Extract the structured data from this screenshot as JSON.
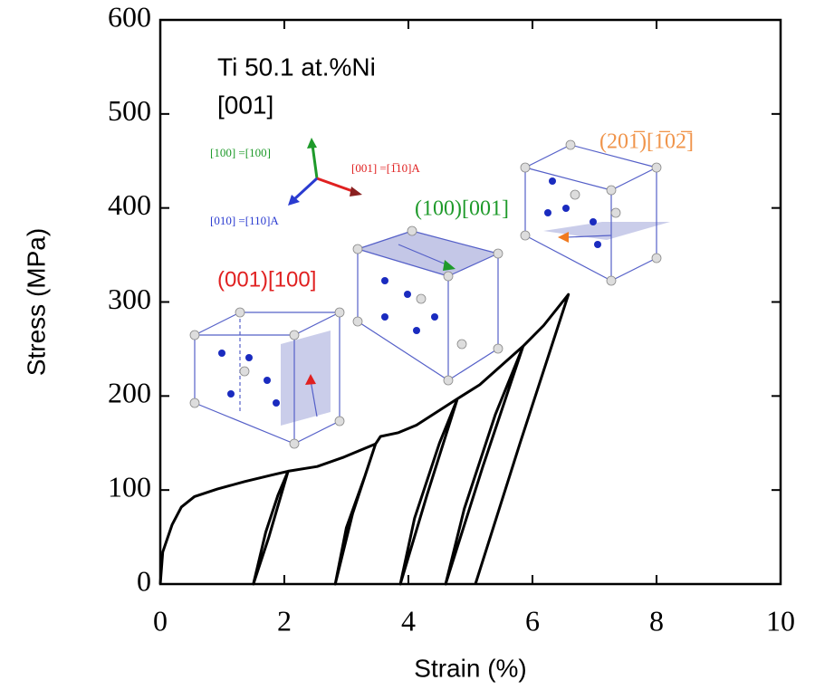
{
  "chart_data": {
    "type": "line",
    "x_label": "Strain (%)",
    "y_label": "Stress (MPa)",
    "xlim": [
      0,
      10
    ],
    "ylim": [
      0,
      600
    ],
    "xticks": [
      0,
      2,
      4,
      6,
      8,
      10
    ],
    "yticks": [
      0,
      100,
      200,
      300,
      400,
      500,
      600
    ],
    "series": [
      {
        "color": "#000000",
        "x": [
          0,
          0.04,
          0.19,
          0.34,
          0.55,
          0.92,
          1.36,
          1.8,
          2.06,
          1.75,
          1.5,
          1.7,
          1.9,
          2.06,
          2.53,
          2.96,
          3.47,
          3.1,
          2.82,
          3.0,
          3.3,
          3.47,
          3.55,
          3.84,
          4.13,
          4.79,
          4.3,
          3.87,
          4.1,
          4.5,
          4.79,
          5.15,
          5.85,
          5.2,
          4.6,
          4.9,
          5.4,
          5.85,
          6.18,
          6.58,
          5.8,
          5.08
        ],
        "values": [
          0,
          34,
          63,
          82,
          93,
          101,
          109,
          116,
          120,
          50,
          0,
          55,
          95,
          120,
          125,
          135,
          149,
          75,
          0,
          60,
          115,
          149,
          157,
          161,
          169,
          197,
          95,
          0,
          70,
          150,
          197,
          212,
          253,
          125,
          0,
          80,
          180,
          253,
          275,
          308,
          150,
          0
        ]
      }
    ],
    "annotations": [
      {
        "text": "Ti 50.1 at.%Ni",
        "color": "#000000"
      },
      {
        "text": "[001]",
        "color": "#000000"
      },
      {
        "text": "(001)[100]",
        "color": "#e02020"
      },
      {
        "text": "(100)[001]",
        "color": "#1e9a2a"
      },
      {
        "text": "(201̅)[1̅02̅]",
        "color": "#f0944a"
      },
      {
        "text": "[100] =[100]",
        "color": "#1e9a2a"
      },
      {
        "text": "[001] =[1̅10]A",
        "color": "#e02020"
      },
      {
        "text": "[010] =[110]A",
        "color": "#2a3bd0"
      }
    ]
  }
}
